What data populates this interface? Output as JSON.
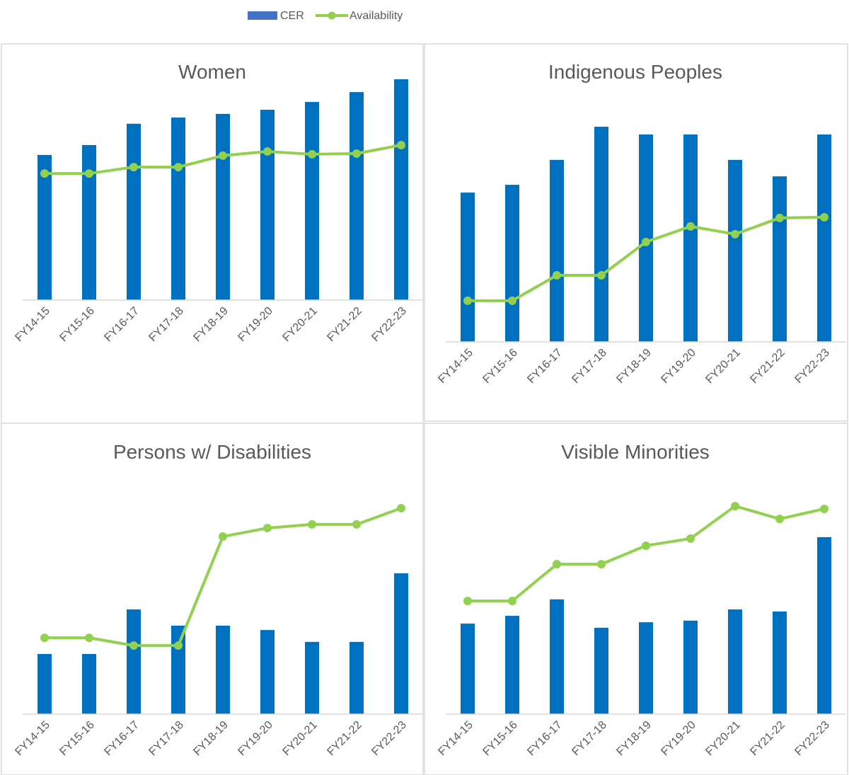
{
  "legend": {
    "items": [
      {
        "label": "CER",
        "kind": "bar",
        "color": "#4472C4"
      },
      {
        "label": "Availability",
        "kind": "line-marker",
        "color": "#92D050"
      }
    ],
    "placement": "top-center"
  },
  "colors": {
    "bar": "#0070C0",
    "line": "#92D050",
    "title": "#595959",
    "tick": "#595959",
    "axis": "#D9D9D9"
  },
  "chart_data": [
    {
      "type": "bar+line",
      "title": "Women",
      "categories": [
        "FY14-15",
        "FY15-16",
        "FY16-17",
        "FY17-18",
        "FY18-19",
        "FY19-20",
        "FY20-21",
        "FY21-22",
        "FY22-23"
      ],
      "series": [
        {
          "name": "CER",
          "type": "bar",
          "values": [
            63.3,
            67.6,
            76.9,
            79.6,
            81.2,
            83.0,
            86.4,
            90.7,
            96.3
          ]
        },
        {
          "name": "Availability",
          "type": "line",
          "values": [
            55.2,
            55.2,
            58.0,
            58.0,
            63.0,
            64.8,
            63.6,
            63.9,
            67.6
          ]
        }
      ],
      "y_axis": "hidden (relative scale)",
      "ylim": [
        0,
        100
      ],
      "grid": false
    },
    {
      "type": "bar+line",
      "title": "Indigenous Peoples",
      "categories": [
        "FY14-15",
        "FY15-16",
        "FY16-17",
        "FY17-18",
        "FY18-19",
        "FY19-20",
        "FY20-21",
        "FY21-22",
        "FY22-23"
      ],
      "series": [
        {
          "name": "CER",
          "type": "bar",
          "values": [
            65.3,
            68.7,
            79.6,
            94.1,
            90.7,
            90.7,
            79.6,
            72.4,
            90.7
          ]
        },
        {
          "name": "Availability",
          "type": "line",
          "values": [
            18.0,
            18.0,
            29.1,
            29.1,
            43.7,
            50.5,
            47.1,
            54.2,
            54.5
          ]
        }
      ],
      "y_axis": "hidden (relative scale)",
      "ylim": [
        0,
        100
      ],
      "grid": false
    },
    {
      "type": "bar+line",
      "title": "Persons w/ Disabilities",
      "categories": [
        "FY14-15",
        "FY15-16",
        "FY16-17",
        "FY17-18",
        "FY18-19",
        "FY19-20",
        "FY20-21",
        "FY21-22",
        "FY22-23"
      ],
      "series": [
        {
          "name": "CER",
          "type": "bar",
          "values": [
            26.3,
            26.3,
            45.8,
            38.7,
            38.7,
            36.8,
            31.6,
            31.6,
            61.6
          ]
        },
        {
          "name": "Availability",
          "type": "line",
          "values": [
            33.4,
            33.4,
            30.0,
            30.0,
            77.7,
            81.4,
            83.0,
            83.0,
            90.1
          ]
        }
      ],
      "y_axis": "hidden (relative scale)",
      "ylim": [
        0,
        100
      ],
      "grid": false
    },
    {
      "type": "bar+line",
      "title": "Visible Minorities",
      "categories": [
        "FY14-15",
        "FY15-16",
        "FY16-17",
        "FY17-18",
        "FY18-19",
        "FY19-20",
        "FY20-21",
        "FY21-22",
        "FY22-23"
      ],
      "series": [
        {
          "name": "CER",
          "type": "bar",
          "values": [
            39.6,
            43.0,
            50.2,
            37.8,
            40.2,
            40.9,
            45.8,
            44.9,
            77.4
          ]
        },
        {
          "name": "Availability",
          "type": "line",
          "values": [
            49.5,
            49.5,
            65.6,
            65.6,
            73.7,
            76.8,
            91.0,
            85.4,
            89.8
          ]
        }
      ],
      "y_axis": "hidden (relative scale)",
      "ylim": [
        0,
        100
      ],
      "grid": false
    }
  ]
}
